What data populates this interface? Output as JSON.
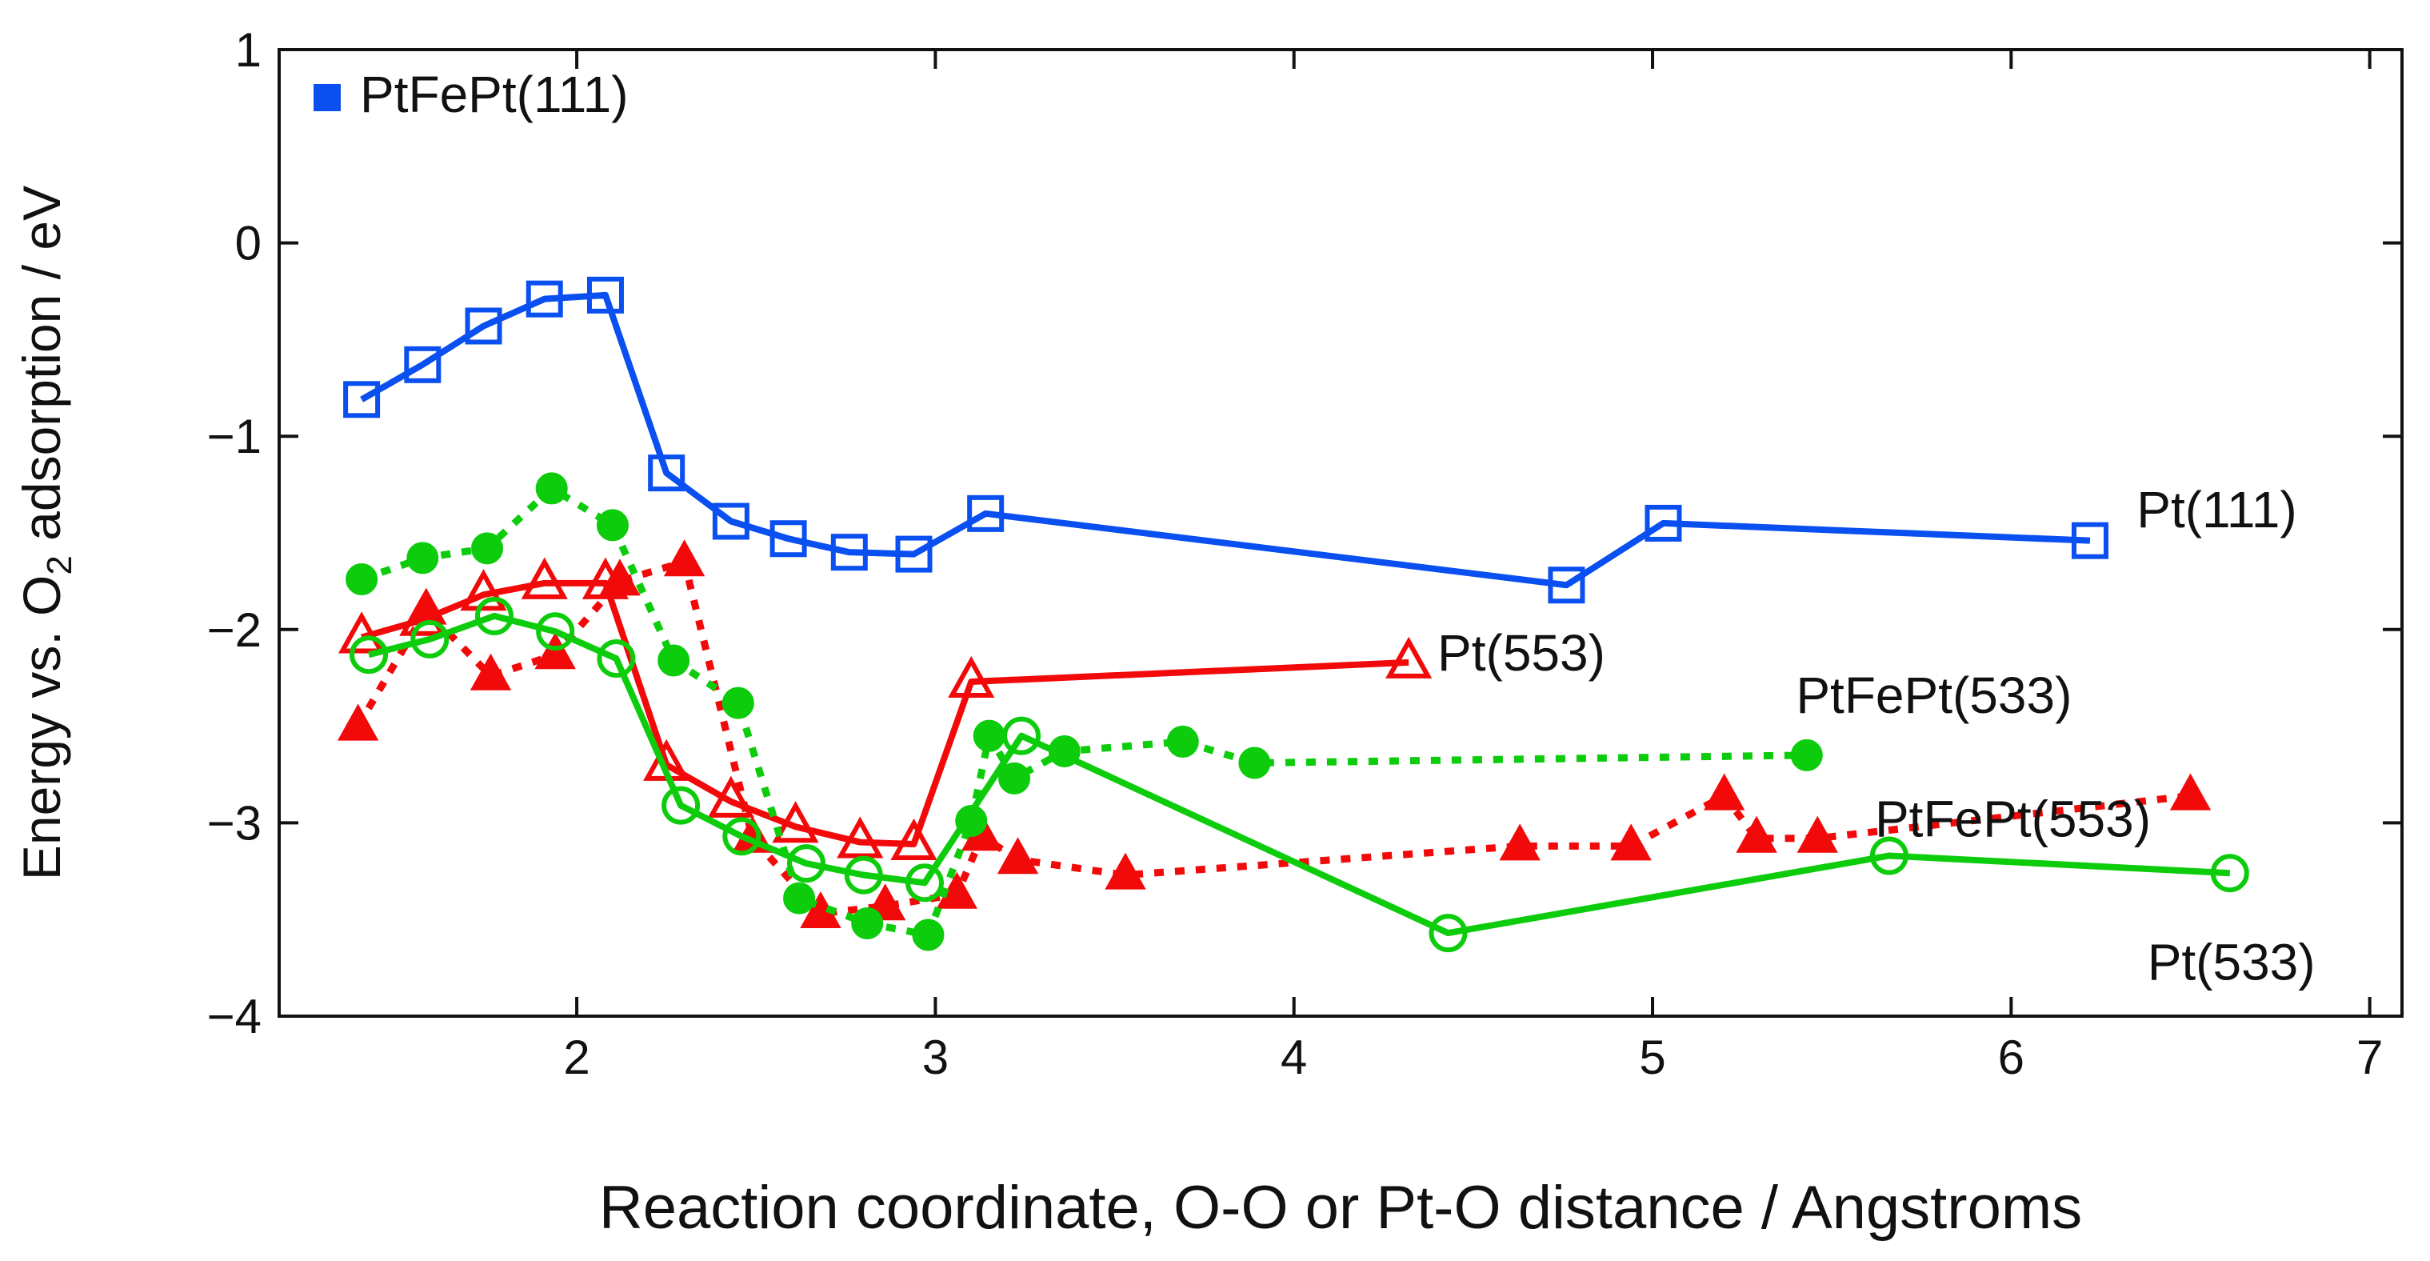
{
  "chart_data": {
    "type": "line",
    "title": "",
    "xlabel": "Reaction coordinate, O-O or Pt-O distance / Angstroms",
    "ylabel": {
      "main": "Energy vs. O",
      "sub": "2",
      "rest": " adsorption / eV"
    },
    "xlim": [
      1.17,
      7.09
    ],
    "ylim": [
      -4,
      1
    ],
    "xticks": [
      2,
      3,
      4,
      5,
      6,
      7
    ],
    "yticks": [
      1,
      0,
      -1,
      -2,
      -3,
      -4
    ],
    "ytick_labels": [
      "1",
      "0",
      "−1",
      "−2",
      "−3",
      "−4"
    ],
    "grid": false,
    "legend": {
      "position": "top-left",
      "label": "PtFePt(111)",
      "color": "#0a4ff0",
      "marker": "filled-square"
    },
    "series": [
      {
        "name": "Pt(111)",
        "color": "#0a4ff0",
        "marker": "open-square",
        "line": "solid",
        "label_at": [
          6.35,
          -1.38
        ],
        "x": [
          1.4,
          1.57,
          1.74,
          1.91,
          2.08,
          2.25,
          2.43,
          2.59,
          2.76,
          2.94,
          3.14,
          4.76,
          5.03,
          6.22
        ],
        "y": [
          -0.81,
          -0.63,
          -0.43,
          -0.29,
          -0.27,
          -1.19,
          -1.44,
          -1.53,
          -1.6,
          -1.61,
          -1.4,
          -1.77,
          -1.45,
          -1.54
        ]
      },
      {
        "name": "Pt(553)",
        "color": "#f20a0a",
        "marker": "open-triangle",
        "line": "solid",
        "label_at": [
          4.4,
          -2.12
        ],
        "x": [
          1.4,
          1.57,
          1.74,
          1.91,
          2.08,
          2.25,
          2.43,
          2.61,
          2.79,
          2.94,
          3.1,
          4.32
        ],
        "y": [
          -2.04,
          -1.95,
          -1.82,
          -1.76,
          -1.76,
          -2.7,
          -2.89,
          -3.02,
          -3.1,
          -3.11,
          -2.27,
          -2.17
        ]
      },
      {
        "name": "PtFePt(553)",
        "color": "#f20a0a",
        "marker": "filled-triangle",
        "line": "dotted",
        "label_at": [
          5.62,
          -2.98
        ],
        "x": [
          1.39,
          1.58,
          1.76,
          1.94,
          2.12,
          2.3,
          2.49,
          2.68,
          2.86,
          3.06,
          3.13,
          3.23,
          3.53,
          4.63,
          4.94,
          5.2,
          5.29,
          5.46,
          6.5
        ],
        "y": [
          -2.5,
          -1.9,
          -2.24,
          -2.13,
          -1.75,
          -1.65,
          -3.08,
          -3.47,
          -3.43,
          -3.37,
          -3.07,
          -3.19,
          -3.27,
          -3.12,
          -3.12,
          -2.86,
          -3.08,
          -3.08,
          -2.86
        ]
      },
      {
        "name": "PtFePt(533)",
        "color": "#0ccc0c",
        "marker": "filled-circle",
        "line": "dotted",
        "label_at": [
          5.4,
          -2.34
        ],
        "x": [
          1.4,
          1.57,
          1.75,
          1.93,
          2.1,
          2.27,
          2.45,
          2.62,
          2.81,
          2.98,
          3.1,
          3.15,
          3.22,
          3.36,
          3.69,
          3.89,
          5.43
        ],
        "y": [
          -1.74,
          -1.63,
          -1.58,
          -1.27,
          -1.46,
          -2.16,
          -2.38,
          -3.39,
          -3.52,
          -3.58,
          -2.99,
          -2.55,
          -2.77,
          -2.63,
          -2.58,
          -2.69,
          -2.65
        ]
      },
      {
        "name": "Pt(533)",
        "color": "#0ccc0c",
        "marker": "open-circle",
        "line": "solid",
        "label_at": [
          6.38,
          -3.72
        ],
        "x": [
          1.42,
          1.59,
          1.77,
          1.94,
          2.11,
          2.29,
          2.46,
          2.64,
          2.8,
          2.97,
          3.24,
          4.43,
          5.66,
          6.61
        ],
        "y": [
          -2.13,
          -2.05,
          -1.93,
          -2.01,
          -2.15,
          -2.91,
          -3.07,
          -3.21,
          -3.27,
          -3.31,
          -2.55,
          -3.57,
          -3.17,
          -3.26
        ]
      }
    ]
  }
}
